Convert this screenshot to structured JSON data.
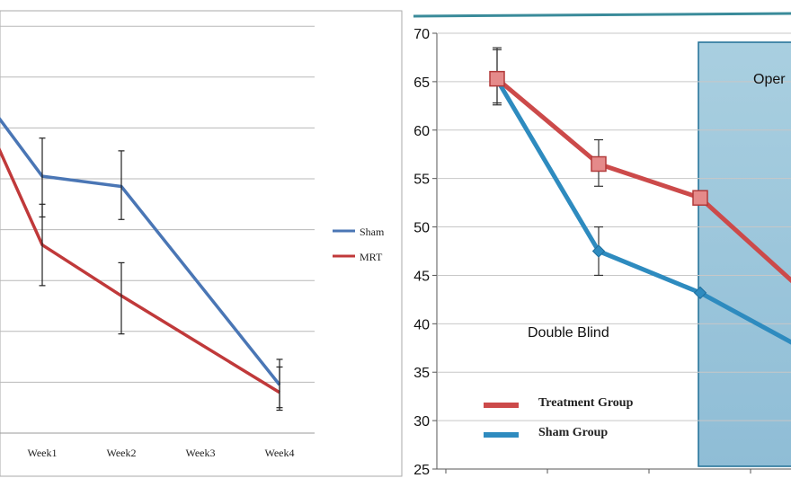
{
  "chart_data": [
    {
      "type": "line",
      "title": "",
      "xlabel": "",
      "ylabel": "",
      "categories": [
        "Week1",
        "Week2",
        "Week3",
        "Week4"
      ],
      "legend_position": "right",
      "grid": true,
      "series": [
        {
          "name": "Sham",
          "color": "#4a76b5",
          "points": [
            {
              "x": -0.55,
              "y": 6.2
            },
            {
              "x": 0,
              "y": 5.05
            },
            {
              "x": 1,
              "y": 4.85
            },
            {
              "x": 3,
              "y": 0.95
            }
          ],
          "error_bars": [
            {
              "x": 0,
              "low": 4.25,
              "high": 5.8
            },
            {
              "x": 1,
              "low": 4.2,
              "high": 5.55
            },
            {
              "x": 3,
              "low": 0.45,
              "high": 1.45
            }
          ]
        },
        {
          "name": "MRT",
          "color": "#c0393a",
          "points": [
            {
              "x": -0.55,
              "y": 5.6
            },
            {
              "x": 0,
              "y": 3.7
            },
            {
              "x": 1,
              "y": 2.7
            },
            {
              "x": 3,
              "y": 0.8
            }
          ],
          "error_bars": [
            {
              "x": 0,
              "low": 2.9,
              "high": 4.5
            },
            {
              "x": 1,
              "low": 1.95,
              "high": 3.35
            },
            {
              "x": 3,
              "low": 0.5,
              "high": 1.3
            }
          ]
        }
      ],
      "y_gridlines": [
        1,
        2,
        3,
        4,
        5,
        6,
        7,
        8
      ],
      "ylim": [
        0,
        8.2
      ]
    },
    {
      "type": "line",
      "title": "",
      "xlabel": "",
      "ylabel": "",
      "ylim": [
        25,
        70
      ],
      "y_ticks": [
        70,
        65,
        60,
        55,
        50,
        45,
        40,
        35,
        30,
        25
      ],
      "x_positions": [
        1,
        2,
        3,
        4
      ],
      "annotations": [
        "Double Blind",
        "Oper"
      ],
      "shaded_region": {
        "from_x": 3,
        "label": "Oper"
      },
      "legend_position": "bottom-left",
      "series": [
        {
          "name": "Treatment Group",
          "color": "#cc4a4a",
          "marker": "square",
          "points": [
            {
              "x": 1,
              "y": 65.3
            },
            {
              "x": 2,
              "y": 56.5
            },
            {
              "x": 3,
              "y": 53.0
            },
            {
              "x": 4,
              "y": 43.5
            }
          ],
          "error_bars": [
            {
              "x": 1,
              "low": 62.8,
              "high": 68.5
            },
            {
              "x": 2,
              "low": 54.2,
              "high": 59.0
            }
          ]
        },
        {
          "name": "Sham Group",
          "color": "#2e8bbf",
          "marker": "diamond",
          "points": [
            {
              "x": 1,
              "y": 65.2
            },
            {
              "x": 2,
              "y": 47.5
            },
            {
              "x": 3,
              "y": 43.2
            },
            {
              "x": 4,
              "y": 37.5
            }
          ],
          "error_bars": [
            {
              "x": 1,
              "low": 62.6,
              "high": 68.3
            },
            {
              "x": 2,
              "low": 45.0,
              "high": 50.0
            }
          ]
        }
      ]
    }
  ]
}
